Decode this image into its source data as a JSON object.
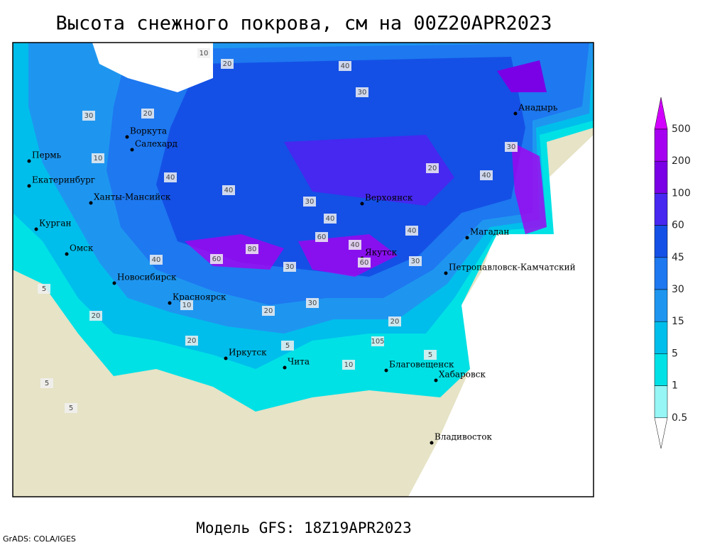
{
  "title": "Высота снежного покрова, см на 00Z20APR2023",
  "subtitle": "Модель GFS: 18Z19APR2023",
  "credit": "GrADS: COLA/IGES",
  "cities": [
    "Воркута",
    "Салехард",
    "Пермь",
    "Екатеринбург",
    "Ханты-Мансийск",
    "Курган",
    "Омск",
    "Новосибирск",
    "Красноярск",
    "Иркутск",
    "Чита",
    "Верхоянск",
    "Якутск",
    "Магадан",
    "Анадырь",
    "Петропавловск-Камчатский",
    "Благовещенск",
    "Хабаровск",
    "Владивосток"
  ],
  "contour_labels": [
    10,
    20,
    40,
    30,
    20,
    30,
    10,
    40,
    40,
    30,
    40,
    60,
    80,
    60,
    40,
    30,
    20,
    30,
    5,
    20,
    10,
    5,
    20,
    105,
    5,
    10,
    5,
    30,
    40,
    20,
    5,
    60,
    40,
    40,
    30,
    20
  ],
  "legend": {
    "levels": [
      500,
      200,
      100,
      60,
      45,
      30,
      15,
      5,
      1,
      0.5
    ],
    "colors": [
      "#d200ff",
      "#a500f0",
      "#7a00e6",
      "#4628f0",
      "#1450e6",
      "#1e78f0",
      "#1e96f0",
      "#00beeb",
      "#00e1e6",
      "#96f5f5",
      "#ffffff"
    ]
  }
}
